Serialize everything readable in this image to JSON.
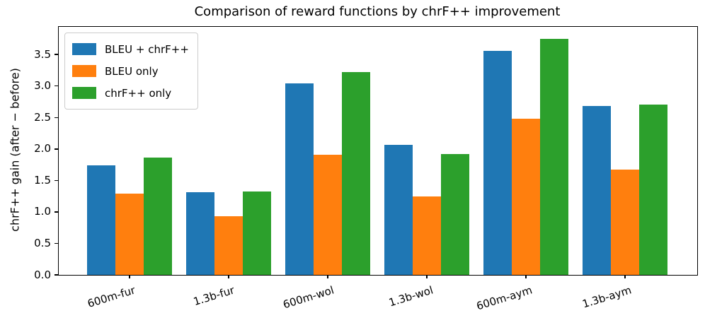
{
  "chart_data": {
    "type": "bar",
    "title": "Comparison of reward functions by chrF++ improvement",
    "xlabel": "",
    "ylabel": "chrF++ gain (after − before)",
    "categories": [
      "600m-fur",
      "1.3b-fur",
      "600m-wol",
      "1.3b-wol",
      "600m-aym",
      "1.3b-aym"
    ],
    "series": [
      {
        "name": "BLEU + chrF++",
        "color": "#1f77b4",
        "values": [
          1.74,
          1.31,
          3.04,
          2.07,
          3.56,
          2.68
        ]
      },
      {
        "name": "BLEU only",
        "color": "#ff7f0e",
        "values": [
          1.29,
          0.93,
          1.91,
          1.25,
          2.48,
          1.67
        ]
      },
      {
        "name": "chrF++ only",
        "color": "#2ca02c",
        "values": [
          1.86,
          1.32,
          3.22,
          1.92,
          3.75,
          2.71
        ]
      }
    ],
    "ylim": [
      0,
      3.94
    ],
    "yticks": [
      0.0,
      0.5,
      1.0,
      1.5,
      2.0,
      2.5,
      3.0,
      3.5
    ],
    "legend_position": "upper left",
    "grid": false
  }
}
